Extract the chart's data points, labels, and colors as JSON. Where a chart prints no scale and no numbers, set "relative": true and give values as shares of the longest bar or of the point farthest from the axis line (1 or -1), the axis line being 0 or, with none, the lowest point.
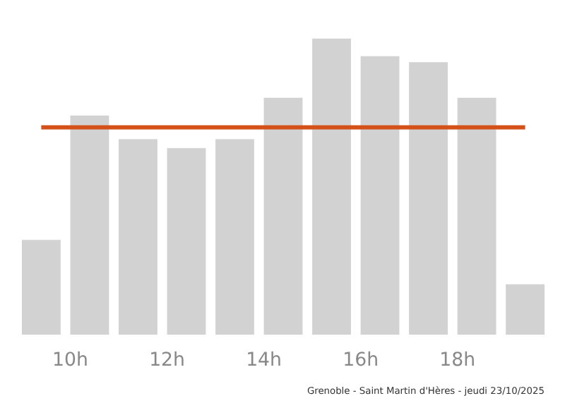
{
  "chart_data": {
    "type": "bar",
    "relative": true,
    "x": [
      9.4,
      10.4,
      11.4,
      12.4,
      13.4,
      14.4,
      15.4,
      16.4,
      17.4,
      18.4,
      19.4
    ],
    "values": [
      0.32,
      0.74,
      0.66,
      0.63,
      0.66,
      0.8,
      1.0,
      0.94,
      0.92,
      0.8,
      0.17
    ],
    "color": "#d3d2d3",
    "xlim": [
      9,
      19.8
    ],
    "xticks": [
      {
        "value": 10,
        "label": "10h"
      },
      {
        "value": 12,
        "label": "12h"
      },
      {
        "value": 14,
        "label": "14h"
      },
      {
        "value": 16,
        "label": "16h"
      },
      {
        "value": 18,
        "label": "18h"
      }
    ],
    "ref_lines": [
      {
        "axis": "y",
        "value": 0.7,
        "label": null,
        "color": "#d4521a"
      }
    ],
    "grid": false,
    "annotations": [
      "Grenoble - Saint Martin d'Hères - jeudi 23/10/2025"
    ]
  }
}
